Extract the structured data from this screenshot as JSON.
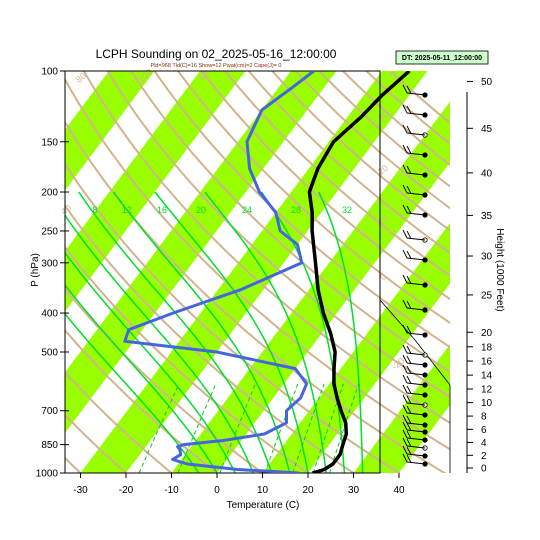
{
  "chart_data": {
    "type": "line",
    "title": "LCPH Sounding on 02_2025-05-16_12:00:00",
    "subtitle": "Pld=968 Tld(C)=16 Show=12 Pwat(cm)=2 Cape(J)= 0",
    "date_label": "DT: 2025-05-11_12:00:00",
    "xlabel": "Temperature (C)",
    "ylabel": "P (hPa)",
    "y2label": "Height (1000 Feet)",
    "x_ticks": [
      -30,
      -20,
      -10,
      0,
      10,
      20,
      30,
      40
    ],
    "p_ticks": [
      100,
      150,
      200,
      250,
      300,
      400,
      500,
      700,
      850,
      1000
    ],
    "height_ticks": [
      0,
      2,
      4,
      6,
      8,
      10,
      12,
      14,
      16,
      18,
      20,
      25,
      30,
      35,
      40,
      45,
      50
    ],
    "mixing_ratio_labels": [
      "8",
      "12",
      "16",
      "20",
      "24",
      "28",
      "32"
    ],
    "dry_adiabat_labels": [
      "30",
      "20",
      "10",
      "0",
      "-10",
      "-20",
      "-30",
      "80",
      "100",
      "60",
      "40"
    ],
    "colors": {
      "background": "#ffffff",
      "isotherm_band": "#99ff00",
      "dry_adiabat": "#d2b48c",
      "moist_adiabat": "#00e02a",
      "mixing_ratio": "#00cc22",
      "temperature": "#000000",
      "dewpoint": "#4466dd",
      "dt_box": "#ccffcc"
    },
    "series": [
      {
        "type": "temperature",
        "points": [
          {
            "p": 1000,
            "t": 21
          },
          {
            "p": 980,
            "t": 23
          },
          {
            "p": 950,
            "t": 24
          },
          {
            "p": 900,
            "t": 24
          },
          {
            "p": 850,
            "t": 23
          },
          {
            "p": 800,
            "t": 22
          },
          {
            "p": 750,
            "t": 20
          },
          {
            "p": 700,
            "t": 17
          },
          {
            "p": 650,
            "t": 14
          },
          {
            "p": 600,
            "t": 11
          },
          {
            "p": 550,
            "t": 8.5
          },
          {
            "p": 500,
            "t": 6
          },
          {
            "p": 450,
            "t": 2
          },
          {
            "p": 400,
            "t": -3
          },
          {
            "p": 350,
            "t": -8
          },
          {
            "p": 300,
            "t": -13
          },
          {
            "p": 250,
            "t": -19
          },
          {
            "p": 225,
            "t": -22
          },
          {
            "p": 200,
            "t": -26
          },
          {
            "p": 175,
            "t": -28
          },
          {
            "p": 150,
            "t": -29
          },
          {
            "p": 130,
            "t": -27
          },
          {
            "p": 115,
            "t": -26
          },
          {
            "p": 100,
            "t": -24
          }
        ]
      },
      {
        "type": "dewpoint",
        "points": [
          {
            "p": 1000,
            "t": 18
          },
          {
            "p": 980,
            "t": 4
          },
          {
            "p": 950,
            "t": -8
          },
          {
            "p": 925,
            "t": -12
          },
          {
            "p": 900,
            "t": -11
          },
          {
            "p": 875,
            "t": -12
          },
          {
            "p": 860,
            "t": -13
          },
          {
            "p": 850,
            "t": -12
          },
          {
            "p": 830,
            "t": -4
          },
          {
            "p": 800,
            "t": 4
          },
          {
            "p": 750,
            "t": 7
          },
          {
            "p": 700,
            "t": 5
          },
          {
            "p": 650,
            "t": 6
          },
          {
            "p": 600,
            "t": 5
          },
          {
            "p": 550,
            "t": 0
          },
          {
            "p": 500,
            "t": -20
          },
          {
            "p": 470,
            "t": -42
          },
          {
            "p": 440,
            "t": -43
          },
          {
            "p": 400,
            "t": -36
          },
          {
            "p": 350,
            "t": -25
          },
          {
            "p": 300,
            "t": -16
          },
          {
            "p": 270,
            "t": -20
          },
          {
            "p": 250,
            "t": -26
          },
          {
            "p": 225,
            "t": -30
          },
          {
            "p": 200,
            "t": -37
          },
          {
            "p": 175,
            "t": -43
          },
          {
            "p": 150,
            "t": -48
          },
          {
            "p": 125,
            "t": -50
          },
          {
            "p": 110,
            "t": -47
          },
          {
            "p": 100,
            "t": -45
          }
        ]
      }
    ]
  }
}
